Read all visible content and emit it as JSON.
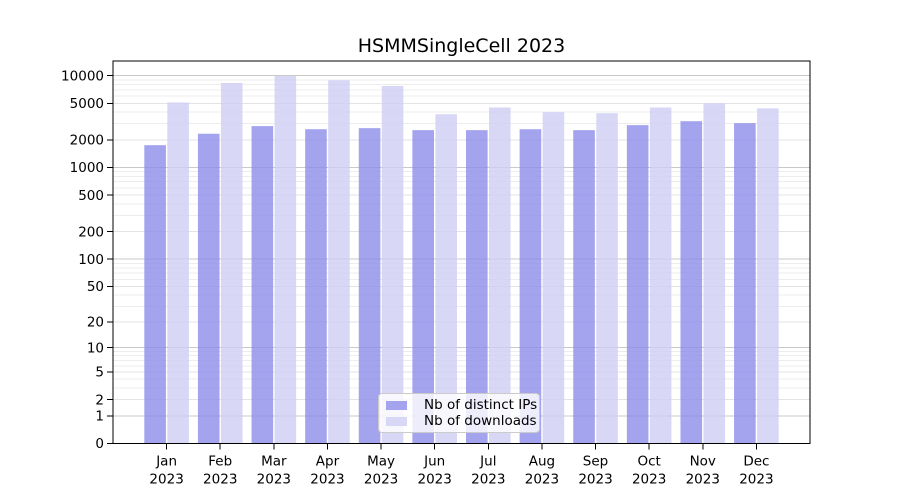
{
  "title": "HSMMSingleCell 2023",
  "legend": {
    "items": [
      {
        "label": "Nb of distinct IPs",
        "color": "#a3a3ee"
      },
      {
        "label": "Nb of downloads",
        "color": "#d8d8f6"
      }
    ]
  },
  "chart_data": {
    "type": "bar",
    "title": "HSMMSingleCell 2023",
    "categories": [
      "Jan 2023",
      "Feb 2023",
      "Mar 2023",
      "Apr 2023",
      "May 2023",
      "Jun 2023",
      "Jul 2023",
      "Aug 2023",
      "Sep 2023",
      "Oct 2023",
      "Nov 2023",
      "Dec 2023"
    ],
    "series": [
      {
        "name": "Nb of distinct IPs",
        "color": "#8c8cea",
        "opacity": 0.8,
        "values": [
          1750,
          2330,
          2820,
          2610,
          2680,
          2550,
          2550,
          2610,
          2550,
          2890,
          3190,
          3040
        ]
      },
      {
        "name": "Nb of downloads",
        "color": "#cecef4",
        "opacity": 0.8,
        "values": [
          5100,
          8300,
          9900,
          8900,
          7700,
          3800,
          4500,
          4000,
          3900,
          4500,
          5000,
          4400
        ]
      }
    ],
    "xlabel": "",
    "ylabel": "",
    "yscale": "log1p",
    "yticks": [
      0,
      1,
      2,
      5,
      10,
      20,
      50,
      100,
      200,
      500,
      1000,
      2000,
      5000,
      10000
    ],
    "ylim": [
      0,
      14400
    ],
    "grid": "horizontal-with-log-minors",
    "legend_position": "inside-bottom-center",
    "grid_color_major": "#c9c9c9",
    "grid_color_mid": "#e3e3e3",
    "grid_color_minor": "#ededed"
  }
}
